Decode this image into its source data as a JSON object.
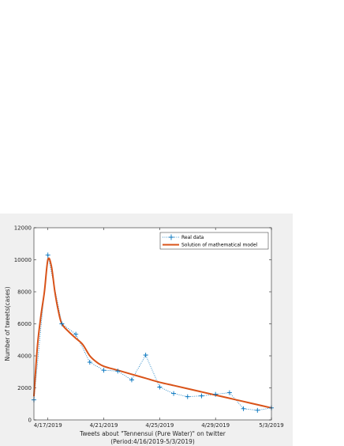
{
  "chart_data": {
    "type": "line",
    "xlabel_line1": "Tweets about \"Tennensui (Pure Water)\" on twitter",
    "xlabel_line2": "(Period:4/16/2019-5/3/2019)",
    "ylabel": "Number of tweets(cases)",
    "x_range": [
      "4/16/2019",
      "5/3/2019"
    ],
    "ylim": [
      0,
      12000
    ],
    "y_ticks": [
      0,
      2000,
      4000,
      6000,
      8000,
      10000,
      12000
    ],
    "x_tick_labels": [
      "4/17/2019",
      "4/21/2019",
      "4/25/2019",
      "4/29/2019",
      "5/3/2019"
    ],
    "legend_position": "top-right",
    "grid": false,
    "series": [
      {
        "name": "Real data",
        "style": "dotted-plus",
        "color": "#0072bd",
        "x": [
          "4/16/2019",
          "4/17/2019",
          "4/18/2019",
          "4/19/2019",
          "4/20/2019",
          "4/21/2019",
          "4/22/2019",
          "4/23/2019",
          "4/24/2019",
          "4/25/2019",
          "4/26/2019",
          "4/27/2019",
          "4/28/2019",
          "4/29/2019",
          "4/30/2019",
          "5/1/2019",
          "5/2/2019",
          "5/3/2019"
        ],
        "values": [
          1250,
          10300,
          6000,
          5350,
          3600,
          3100,
          3050,
          2500,
          4050,
          2050,
          1650,
          1450,
          1500,
          1600,
          1700,
          700,
          600,
          750
        ]
      },
      {
        "name": "Solution of mathematical model",
        "style": "solid",
        "color": "#d95319",
        "x": [
          "4/16/2019",
          "4/16/2019 06:00",
          "4/16/2019 12:00",
          "4/16/2019 18:00",
          "4/17/2019",
          "4/17/2019 06:00",
          "4/17/2019 12:00",
          "4/17/2019 18:00",
          "4/18/2019",
          "4/18/2019 12:00",
          "4/19/2019",
          "4/19/2019 12:00",
          "4/20/2019",
          "4/20/2019 12:00",
          "4/21/2019",
          "4/22/2019",
          "4/23/2019",
          "4/24/2019",
          "4/25/2019",
          "4/26/2019",
          "4/27/2019",
          "4/28/2019",
          "4/29/2019",
          "4/30/2019",
          "5/1/2019",
          "5/2/2019",
          "5/3/2019"
        ],
        "values": [
          1500,
          4600,
          6500,
          8000,
          10000,
          9600,
          8000,
          6800,
          6000,
          5500,
          5100,
          4700,
          4000,
          3600,
          3350,
          3100,
          2850,
          2600,
          2350,
          2150,
          1950,
          1750,
          1550,
          1350,
          1150,
          950,
          750
        ]
      }
    ]
  }
}
